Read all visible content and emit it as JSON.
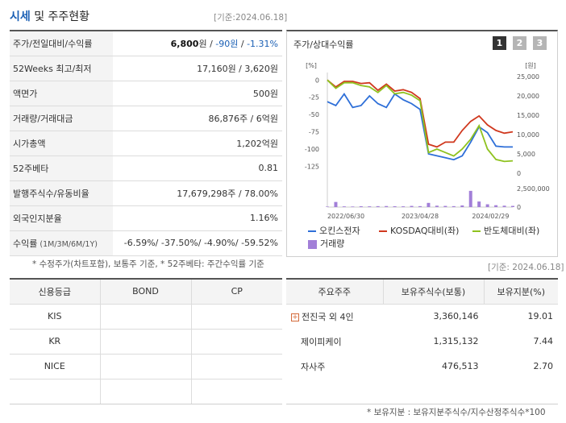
{
  "header": {
    "title_blue": "시세",
    "title_rest": " 및 주주현황",
    "ref_date": "[기준:2024.06.18]"
  },
  "quote": {
    "rows": [
      {
        "label": "주가/전일대비/수익률",
        "price": "6,800",
        "unit": "원",
        "sep1": " / ",
        "change": "-90원",
        "sep2": " / ",
        "rate": "-1.31%"
      },
      {
        "label": "52Weeks 최고/최저",
        "value": "17,160원 / 3,620원"
      },
      {
        "label": "액면가",
        "value": "500원"
      },
      {
        "label": "거래량/거래대금",
        "value": "86,876주 / 6억원"
      },
      {
        "label": "시가총액",
        "value": "1,202억원"
      },
      {
        "label": "52주베타",
        "value": "0.81"
      },
      {
        "label": "발행주식수/유동비율",
        "value": "17,679,298주 / 78.00%"
      },
      {
        "label": "외국인지분율",
        "value": "1.16%"
      },
      {
        "label": "수익률",
        "label_sub": " (1M/3M/6M/1Y)",
        "value": "-6.59%/ -37.50%/ -4.90%/ -59.52%"
      }
    ],
    "note": "* 수정주가(차트포함), 보통주 기준, * 52주베타: 주간수익률 기준"
  },
  "chart_panel": {
    "title": "주가/상대수익률",
    "pages": [
      "1",
      "2",
      "3"
    ],
    "legend": [
      {
        "label": "오킨스전자",
        "color": "#2e6fd8"
      },
      {
        "label": "KOSDAQ대비(좌)",
        "color": "#d0381e"
      },
      {
        "label": "반도체대비(좌)",
        "color": "#8fc21f"
      },
      {
        "label": "거래량",
        "color": "#a27fd8"
      }
    ]
  },
  "chart_data": {
    "type": "line",
    "left_axis_unit": "[%]",
    "right_axis_unit": "[원]",
    "left_ticks": [
      "0",
      "-25",
      "-50",
      "-75",
      "-100",
      "-125"
    ],
    "right_ticks": [
      "25,000",
      "20,000",
      "15,000",
      "10,000",
      "5,000",
      "0"
    ],
    "volume_ticks": [
      "2,500,000",
      "0"
    ],
    "x_ticks": [
      "2022/06/30",
      "2023/04/28",
      "2024/02/29"
    ],
    "left_ylim": [
      -135,
      5
    ],
    "right_ylim": [
      0,
      25000
    ],
    "series": [
      {
        "name": "오킨스전자",
        "axis": "right",
        "color": "#2e6fd8",
        "values": [
          18500,
          17500,
          20500,
          17000,
          17500,
          20000,
          18000,
          17000,
          20500,
          19000,
          18000,
          16500,
          5000,
          4500,
          4000,
          3500,
          4500,
          8000,
          12000,
          10500,
          7000,
          6800,
          6800
        ]
      },
      {
        "name": "KOSDAQ대비(좌)",
        "axis": "left",
        "color": "#d0381e",
        "values": [
          0,
          -10,
          -2,
          -2,
          -5,
          -4,
          -15,
          -6,
          -16,
          -14,
          -18,
          -27,
          -93,
          -97,
          -90,
          -90,
          -73,
          -60,
          -52,
          -65,
          -73,
          -77,
          -75
        ]
      },
      {
        "name": "반도체대비(좌)",
        "axis": "left",
        "color": "#8fc21f",
        "values": [
          0,
          -12,
          -4,
          -4,
          -8,
          -10,
          -18,
          -8,
          -20,
          -18,
          -22,
          -30,
          -105,
          -100,
          -105,
          -110,
          -100,
          -86,
          -66,
          -100,
          -115,
          -118,
          -117
        ]
      }
    ],
    "volume": {
      "name": "거래량",
      "color": "#a27fd8",
      "values": [
        100000,
        1100000,
        150000,
        120000,
        180000,
        160000,
        200000,
        220000,
        180000,
        160000,
        250000,
        200000,
        900000,
        300000,
        250000,
        200000,
        350000,
        3500000,
        1200000,
        600000,
        400000,
        300000,
        250000
      ]
    }
  },
  "chart_ref_date": "[기준: 2024.06.18]",
  "credit": {
    "headers": [
      "신용등급",
      "BOND",
      "CP"
    ],
    "rows": [
      [
        "KIS",
        "",
        ""
      ],
      [
        "KR",
        "",
        ""
      ],
      [
        "NICE",
        "",
        ""
      ],
      [
        "",
        "",
        ""
      ]
    ]
  },
  "holders": {
    "headers": [
      "주요주주",
      "보유주식수(보통)",
      "보유지분(%)"
    ],
    "rows": [
      {
        "name": "전진국 외 4인",
        "shares": "3,360,146",
        "pct": "19.01",
        "expandable": true
      },
      {
        "name": "제이피케이",
        "shares": "1,315,132",
        "pct": "7.44",
        "expandable": false
      },
      {
        "name": "자사주",
        "shares": "476,513",
        "pct": "2.70",
        "expandable": false
      },
      {
        "name": "",
        "shares": "",
        "pct": "",
        "expandable": false
      }
    ],
    "note": "* 보유지분 : 보유지분주식수/지수산정주식수*100"
  }
}
